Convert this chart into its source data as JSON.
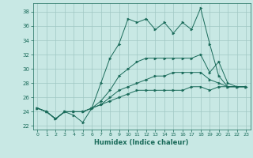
{
  "xlabel": "Humidex (Indice chaleur)",
  "xlim": [
    -0.5,
    23.5
  ],
  "ylim": [
    21.5,
    39.2
  ],
  "yticks": [
    22,
    24,
    26,
    28,
    30,
    32,
    34,
    36,
    38
  ],
  "xticks": [
    0,
    1,
    2,
    3,
    4,
    5,
    6,
    7,
    8,
    9,
    10,
    11,
    12,
    13,
    14,
    15,
    16,
    17,
    18,
    19,
    20,
    21,
    22,
    23
  ],
  "bg_color": "#c8e8e4",
  "grid_color": "#a0c8c4",
  "line_color": "#1a6b5a",
  "series": [
    {
      "x": [
        0,
        1,
        2,
        3,
        4,
        5,
        6,
        7,
        8,
        9,
        10,
        11,
        12,
        13,
        14,
        15,
        16,
        17,
        18,
        19,
        20,
        21,
        22,
        23
      ],
      "y": [
        24.5,
        24.0,
        23.0,
        24.0,
        23.5,
        22.5,
        24.5,
        28.0,
        31.5,
        33.5,
        37.0,
        36.5,
        37.0,
        35.5,
        36.5,
        35.0,
        36.5,
        35.5,
        38.5,
        33.5,
        29.0,
        27.5,
        27.5,
        27.5
      ]
    },
    {
      "x": [
        0,
        1,
        2,
        3,
        4,
        5,
        6,
        7,
        8,
        9,
        10,
        11,
        12,
        13,
        14,
        15,
        16,
        17,
        18,
        19,
        20,
        21,
        22,
        23
      ],
      "y": [
        24.5,
        24.0,
        23.0,
        24.0,
        24.0,
        24.0,
        24.5,
        25.5,
        27.0,
        29.0,
        30.0,
        31.0,
        31.5,
        31.5,
        31.5,
        31.5,
        31.5,
        31.5,
        32.0,
        29.5,
        31.0,
        28.0,
        27.5,
        27.5
      ]
    },
    {
      "x": [
        0,
        1,
        2,
        3,
        4,
        5,
        6,
        7,
        8,
        9,
        10,
        11,
        12,
        13,
        14,
        15,
        16,
        17,
        18,
        19,
        20,
        21,
        22,
        23
      ],
      "y": [
        24.5,
        24.0,
        23.0,
        24.0,
        24.0,
        24.0,
        24.5,
        25.0,
        26.0,
        27.0,
        27.5,
        28.0,
        28.5,
        29.0,
        29.0,
        29.5,
        29.5,
        29.5,
        29.5,
        28.5,
        28.0,
        27.5,
        27.5,
        27.5
      ]
    },
    {
      "x": [
        0,
        1,
        2,
        3,
        4,
        5,
        6,
        7,
        8,
        9,
        10,
        11,
        12,
        13,
        14,
        15,
        16,
        17,
        18,
        19,
        20,
        21,
        22,
        23
      ],
      "y": [
        24.5,
        24.0,
        23.0,
        24.0,
        24.0,
        24.0,
        24.5,
        25.0,
        25.5,
        26.0,
        26.5,
        27.0,
        27.0,
        27.0,
        27.0,
        27.0,
        27.0,
        27.5,
        27.5,
        27.0,
        27.5,
        27.5,
        27.5,
        27.5
      ]
    }
  ]
}
